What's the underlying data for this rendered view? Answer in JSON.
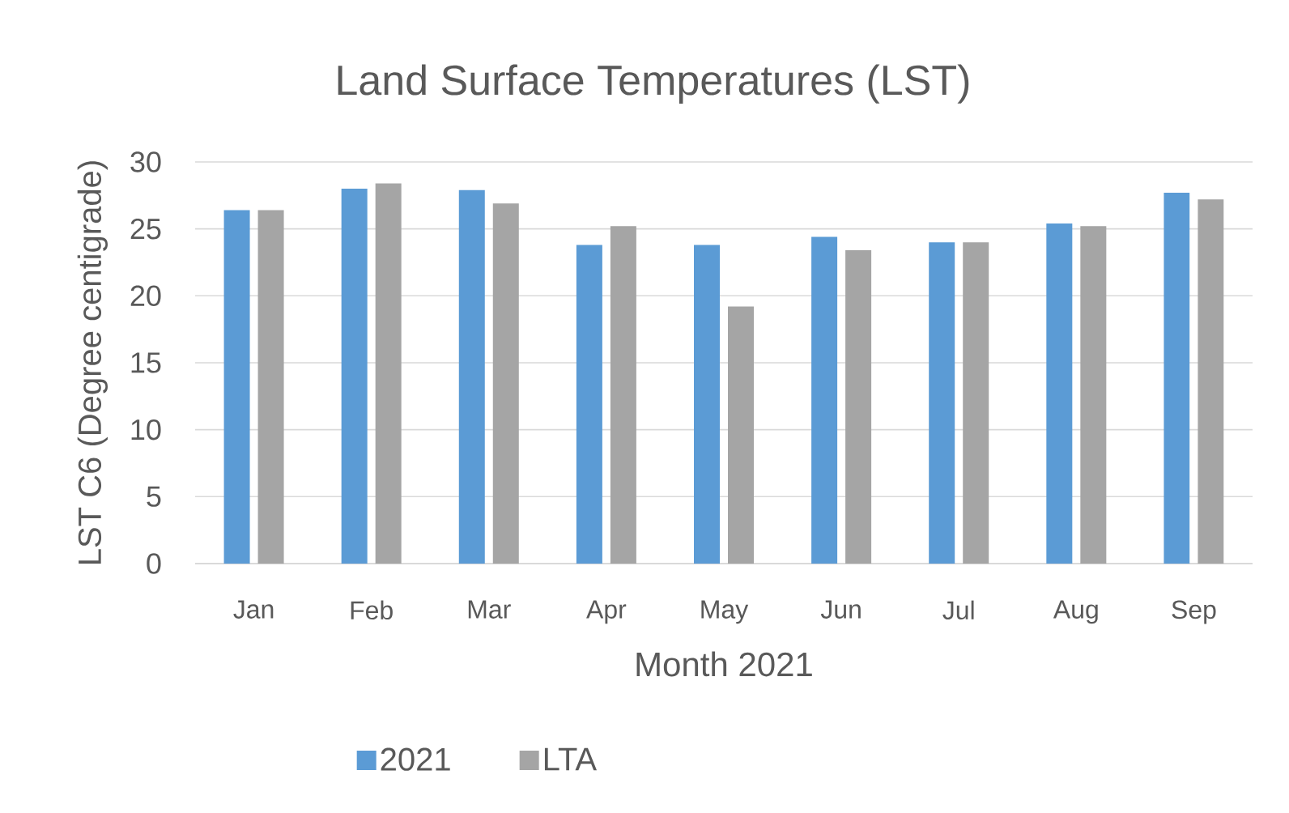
{
  "chart_data": {
    "type": "bar",
    "title": "Land Surface Temperatures (LST)",
    "xlabel": "Month 2021",
    "ylabel": "LST C6 (Degree centigrade)",
    "categories": [
      "Jan",
      "Feb",
      "Mar",
      "Apr",
      "May",
      "Jun",
      "Jul",
      "Aug",
      "Sep"
    ],
    "series": [
      {
        "name": "2021",
        "color": "#5b9bd5",
        "values": [
          26.4,
          28.0,
          27.9,
          23.8,
          23.8,
          24.4,
          24.0,
          25.4,
          27.7
        ]
      },
      {
        "name": "LTA",
        "color": "#a5a5a5",
        "values": [
          26.4,
          28.4,
          26.9,
          25.2,
          19.2,
          23.4,
          24.0,
          25.2,
          27.2
        ]
      }
    ],
    "ylim": [
      0,
      30
    ],
    "yticks": [
      0,
      5,
      10,
      15,
      20,
      25,
      30
    ],
    "grid": "y",
    "legend": "bottom"
  }
}
